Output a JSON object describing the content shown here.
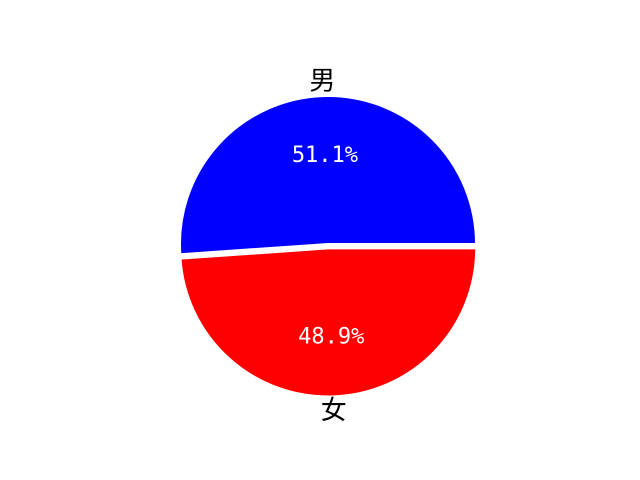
{
  "chart_data": {
    "type": "pie",
    "categories": [
      "男",
      "女"
    ],
    "values": [
      51.1,
      48.9
    ],
    "labels": [
      "男",
      "女"
    ],
    "percent_labels": [
      "51.1%",
      "48.9%"
    ],
    "colors": [
      "#0000ff",
      "#ff0000"
    ],
    "explode": [
      0.0,
      0.03
    ],
    "start_angle_deg": 0,
    "direction": "counterclockwise",
    "legend": "none"
  }
}
